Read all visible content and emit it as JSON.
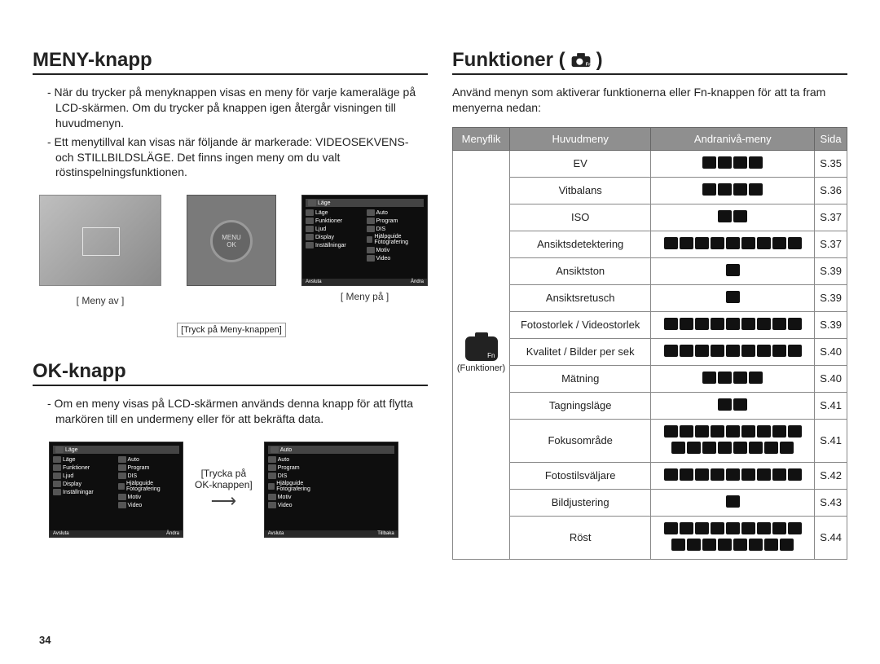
{
  "page_number": "34",
  "left": {
    "meny": {
      "title": "MENY-knapp",
      "para1": "- När du trycker på menyknappen visas en meny för varje kameraläge på LCD-skärmen. Om du trycker på knappen igen återgår visningen till huvudmenyn.",
      "para2": "- Ett menytillval kan visas när följande är markerade: VIDEOSEKVENS- och STILLBILDSLÄGE. Det finns ingen meny om du valt röstinspelningsfunktionen.",
      "fig_caption_left": "[ Meny av ]",
      "fig_caption_mid": "[Tryck på Meny-knappen]",
      "fig_caption_right": "[ Meny på ]",
      "menu_top": "Läge",
      "menu_items_left": [
        "Läge",
        "Funktioner",
        "Ljud",
        "Display",
        "Inställningar"
      ],
      "menu_items_right": [
        "Auto",
        "Program",
        "DIS",
        "Hjälpguide Fotografering",
        "Motiv",
        "Video"
      ],
      "menu_foot_left": "Avsluta",
      "menu_foot_right": "Ändra"
    },
    "ok": {
      "title": "OK-knapp",
      "para": "- Om en meny visas på LCD-skärmen används denna knapp för att flytta markören till en undermeny eller för att bekräfta data.",
      "mid_caption_line1": "[Trycka på",
      "mid_caption_line2": "OK-knappen]",
      "menu2_foot_right": "Tillbaka"
    }
  },
  "right": {
    "title_text": "Funktioner (",
    "title_close": " )",
    "intro": "Använd menyn som aktiverar funktionerna eller Fn-knappen för att ta fram menyerna nedan:",
    "headers": [
      "Menyflik",
      "Huvudmeny",
      "Andranivå-meny",
      "Sida"
    ],
    "tab_label": "(Funktioner)",
    "rows": [
      {
        "name": "EV",
        "icons": 4,
        "page": "S.35"
      },
      {
        "name": "Vitbalans",
        "icons": 4,
        "page": "S.36"
      },
      {
        "name": "ISO",
        "icons": 2,
        "page": "S.37"
      },
      {
        "name": "Ansiktsdetektering",
        "icons": 9,
        "page": "S.37"
      },
      {
        "name": "Ansiktston",
        "icons": 1,
        "page": "S.39"
      },
      {
        "name": "Ansiktsretusch",
        "icons": 1,
        "page": "S.39"
      },
      {
        "name": "Fotostorlek / Videostorlek",
        "icons": 9,
        "page": "S.39"
      },
      {
        "name": "Kvalitet / Bilder per sek",
        "icons": 9,
        "page": "S.40"
      },
      {
        "name": "Mätning",
        "icons": 4,
        "page": "S.40"
      },
      {
        "name": "Tagningsläge",
        "icons": 2,
        "page": "S.41"
      },
      {
        "name": "Fokusområde",
        "icons": 17,
        "page": "S.41"
      },
      {
        "name": "Fotostilsväljare",
        "icons": 9,
        "page": "S.42"
      },
      {
        "name": "Bildjustering",
        "icons": 1,
        "page": "S.43"
      },
      {
        "name": "Röst",
        "icons": 17,
        "page": "S.44"
      }
    ]
  }
}
